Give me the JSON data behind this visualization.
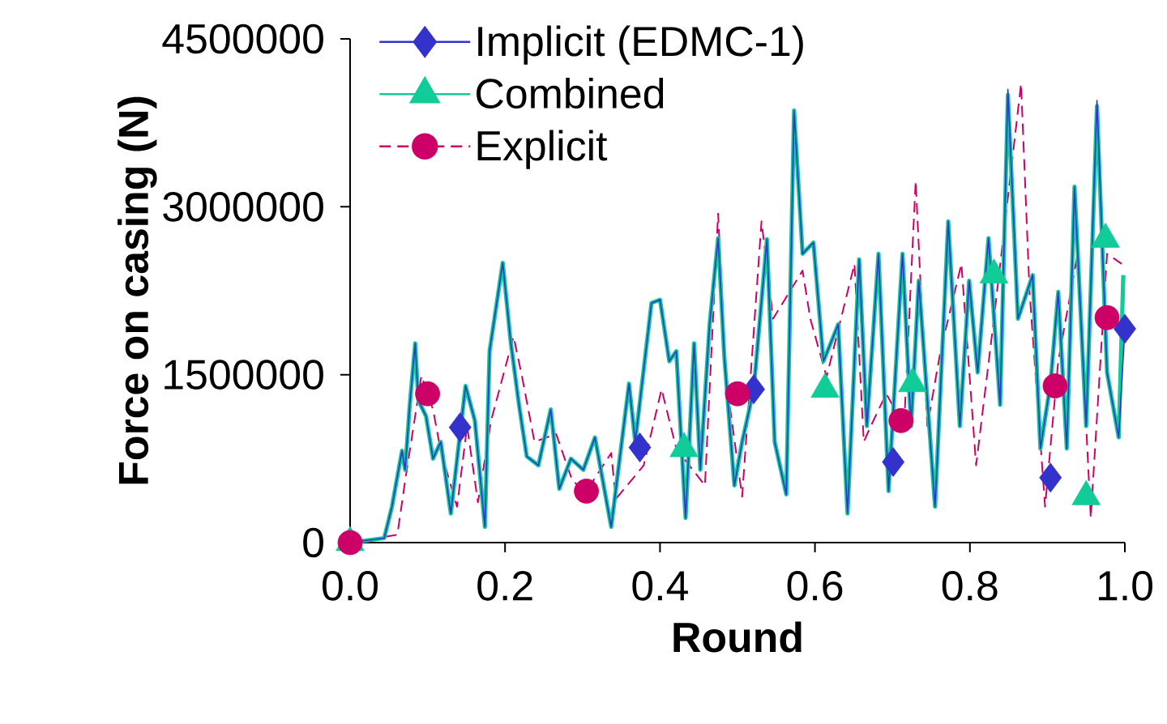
{
  "chart_data": {
    "type": "line",
    "xlabel": "Round",
    "ylabel": "Force on casing (N)",
    "xlim": [
      0,
      1
    ],
    "ylim": [
      0,
      4500000
    ],
    "xticks": [
      {
        "value": 0,
        "label": "0.0"
      },
      0.2,
      0.4,
      0.6,
      0.8,
      {
        "value": 1,
        "label": "1.0"
      }
    ],
    "yticks": [
      0,
      1500000,
      3000000,
      4500000
    ],
    "grid": false,
    "legend": "top left",
    "series": [
      {
        "name": "Implicit (EDMC-1)",
        "color": "#3333cc",
        "line_style": "solid",
        "x": [
          0,
          0.044,
          0.054,
          0.067,
          0.071,
          0.077,
          0.084,
          0.088,
          0.098,
          0.107,
          0.117,
          0.13,
          0.149,
          0.161,
          0.174,
          0.18,
          0.197,
          0.207,
          0.218,
          0.228,
          0.243,
          0.259,
          0.27,
          0.285,
          0.301,
          0.316,
          0.337,
          0.36,
          0.368,
          0.389,
          0.4,
          0.412,
          0.421,
          0.433,
          0.444,
          0.452,
          0.464,
          0.475,
          0.483,
          0.496,
          0.506,
          0.521,
          0.538,
          0.548,
          0.563,
          0.573,
          0.584,
          0.598,
          0.611,
          0.63,
          0.642,
          0.657,
          0.667,
          0.682,
          0.695,
          0.713,
          0.724,
          0.734,
          0.755,
          0.772,
          0.787,
          0.799,
          0.81,
          0.824,
          0.839,
          0.849,
          0.862,
          0.881,
          0.891,
          0.904,
          0.914,
          0.925,
          0.935,
          0.95,
          0.964,
          0.977,
          0.992,
          1.0
        ],
        "values": [
          0,
          40000,
          320000,
          820000,
          650000,
          1230000,
          1780000,
          1270000,
          1130000,
          750000,
          900000,
          260000,
          1400000,
          1090000,
          140000,
          1710000,
          2500000,
          1810000,
          1230000,
          770000,
          690000,
          1190000,
          480000,
          750000,
          650000,
          940000,
          140000,
          1420000,
          900000,
          2140000,
          2170000,
          1620000,
          1710000,
          220000,
          1780000,
          650000,
          1950000,
          2720000,
          1660000,
          510000,
          900000,
          1370000,
          2710000,
          900000,
          430000,
          3860000,
          2580000,
          2680000,
          1620000,
          1950000,
          260000,
          2530000,
          1040000,
          2580000,
          460000,
          2580000,
          1040000,
          2340000,
          320000,
          2870000,
          1040000,
          2340000,
          1520000,
          2720000,
          1230000,
          4050000,
          2000000,
          2390000,
          840000,
          1420000,
          2240000,
          840000,
          3180000,
          1040000,
          3950000,
          1520000,
          940000,
          1910000
        ]
      },
      {
        "name": "Combined",
        "color": "#11cc99",
        "line_style": "solid",
        "x": [
          0,
          0.044,
          0.054,
          0.067,
          0.071,
          0.077,
          0.084,
          0.088,
          0.098,
          0.107,
          0.117,
          0.13,
          0.149,
          0.161,
          0.174,
          0.18,
          0.197,
          0.207,
          0.218,
          0.228,
          0.243,
          0.259,
          0.27,
          0.285,
          0.301,
          0.316,
          0.337,
          0.36,
          0.368,
          0.389,
          0.4,
          0.412,
          0.421,
          0.433,
          0.444,
          0.452,
          0.464,
          0.475,
          0.483,
          0.496,
          0.506,
          0.521,
          0.538,
          0.548,
          0.563,
          0.573,
          0.584,
          0.598,
          0.611,
          0.63,
          0.642,
          0.657,
          0.667,
          0.682,
          0.695,
          0.713,
          0.724,
          0.734,
          0.755,
          0.772,
          0.787,
          0.799,
          0.81,
          0.824,
          0.839,
          0.849,
          0.862,
          0.881,
          0.891,
          0.904,
          0.914,
          0.925,
          0.935,
          0.95,
          0.964,
          0.977,
          0.992,
          0.998
        ],
        "values": [
          0,
          40000,
          320000,
          820000,
          650000,
          1230000,
          1780000,
          1270000,
          1130000,
          750000,
          900000,
          260000,
          1400000,
          1090000,
          140000,
          1710000,
          2500000,
          1810000,
          1230000,
          770000,
          690000,
          1190000,
          480000,
          750000,
          650000,
          940000,
          140000,
          1420000,
          900000,
          2140000,
          2170000,
          1620000,
          1710000,
          220000,
          1780000,
          650000,
          1950000,
          2720000,
          1660000,
          510000,
          900000,
          1370000,
          2710000,
          900000,
          430000,
          3860000,
          2580000,
          2680000,
          1620000,
          1950000,
          260000,
          2530000,
          1040000,
          2580000,
          460000,
          2580000,
          1040000,
          2340000,
          320000,
          2870000,
          1040000,
          2340000,
          1520000,
          2720000,
          1230000,
          4000000,
          2000000,
          2390000,
          840000,
          1420000,
          2240000,
          840000,
          3180000,
          1040000,
          3900000,
          1520000,
          940000,
          2390000
        ]
      },
      {
        "name": "Explicit",
        "color": "#cc0066",
        "line_style": "dashed",
        "x": [
          0,
          0.061,
          0.071,
          0.092,
          0.107,
          0.117,
          0.138,
          0.151,
          0.165,
          0.182,
          0.211,
          0.222,
          0.238,
          0.266,
          0.287,
          0.305,
          0.337,
          0.343,
          0.379,
          0.402,
          0.421,
          0.458,
          0.475,
          0.485,
          0.506,
          0.531,
          0.546,
          0.584,
          0.594,
          0.615,
          0.651,
          0.663,
          0.672,
          0.692,
          0.715,
          0.73,
          0.745,
          0.762,
          0.789,
          0.808,
          0.831,
          0.866,
          0.877,
          0.897,
          0.914,
          0.939,
          0.956,
          0.977,
          0.996
        ],
        "values": [
          0,
          70000,
          550000,
          1490000,
          1190000,
          820000,
          320000,
          1040000,
          360000,
          1090000,
          1840000,
          1480000,
          900000,
          970000,
          550000,
          460000,
          800000,
          390000,
          690000,
          1370000,
          840000,
          510000,
          2940000,
          1480000,
          410000,
          2870000,
          2000000,
          2430000,
          2000000,
          1480000,
          2490000,
          900000,
          1040000,
          1330000,
          1040000,
          3230000,
          1040000,
          1710000,
          2490000,
          690000,
          2000000,
          4100000,
          2240000,
          320000,
          1620000,
          2580000,
          220000,
          2580000,
          2490000
        ]
      },
      {
        "type": "scatter",
        "color": "#3333cc",
        "marker": "diamond",
        "x": [
          0.142,
          0.374,
          0.521,
          0.701,
          0.904,
          1.0
        ],
        "values": [
          1030000,
          850000,
          1370000,
          720000,
          580000,
          1910000
        ]
      },
      {
        "type": "scatter",
        "color": "#11cc99",
        "marker": "triangle",
        "x": [
          0,
          0.431,
          0.613,
          0.726,
          0.831,
          0.95,
          0.975
        ],
        "values": [
          0,
          840000,
          1370000,
          1420000,
          2390000,
          410000,
          2710000
        ]
      },
      {
        "type": "scatter",
        "color": "#cc0066",
        "marker": "circle",
        "x": [
          0,
          0.1,
          0.305,
          0.5,
          0.711,
          0.91,
          0.977
        ],
        "values": [
          0,
          1330000,
          460000,
          1330000,
          1090000,
          1400000,
          2010000
        ]
      }
    ]
  }
}
